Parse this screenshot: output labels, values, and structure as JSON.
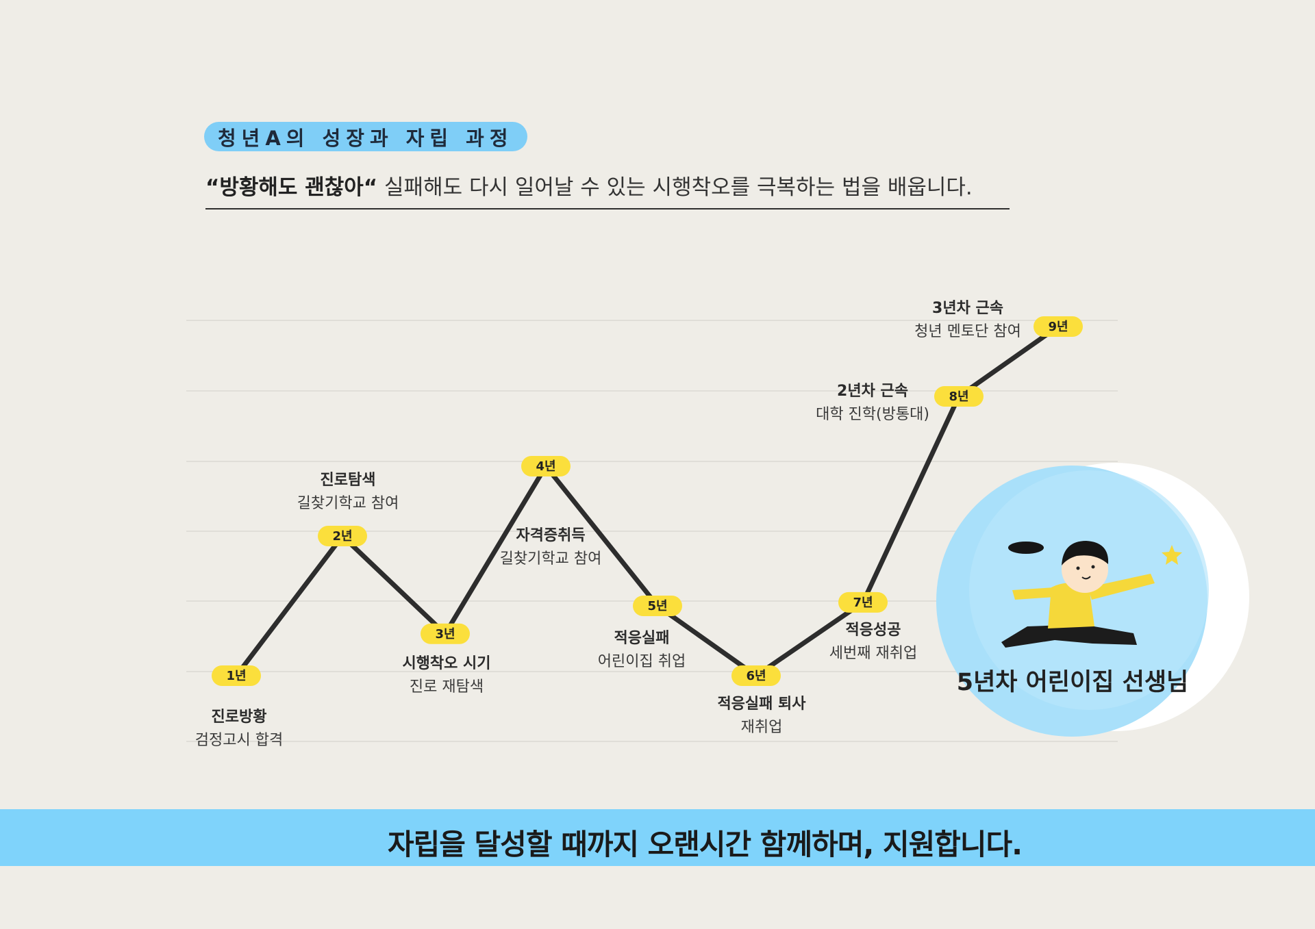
{
  "header": {
    "title": "청년A의 성장과 자립 과정",
    "subtitle_quote": "“방황해도 괜찮아“",
    "subtitle_text": " 실패해도 다시 일어날 수 있는 시행착오를 극복하는 법을 배웁니다."
  },
  "timeline": [
    {
      "badge": "1년",
      "title": "진로방황",
      "desc": "검정고시 합격",
      "level": 1.0
    },
    {
      "badge": "2년",
      "title": "진로탐색",
      "desc": "길찾기학교 참여",
      "level": 3.0
    },
    {
      "badge": "3년",
      "title": "시행착오 시기",
      "desc": "진로 재탐색",
      "level": 1.6
    },
    {
      "badge": "4년",
      "title": "자격증취득",
      "desc": "길찾기학교 참여",
      "level": 4.0
    },
    {
      "badge": "5년",
      "title": "적응실패",
      "desc": "어린이집 취업",
      "level": 2.0
    },
    {
      "badge": "6년",
      "title": "적응실패 퇴사",
      "desc": "재취업",
      "level": 1.0
    },
    {
      "badge": "7년",
      "title": "적응성공",
      "desc": "세번째 재취업",
      "level": 2.05
    },
    {
      "badge": "8년",
      "title": "2년차 근속",
      "desc": "대학 진학(방통대)",
      "level": 5.0
    },
    {
      "badge": "9년",
      "title": "3년차 근속",
      "desc": "청년 멘토단 참여",
      "level": 6.0
    }
  ],
  "illustration": {
    "caption": "5년차 어린이집 선생님"
  },
  "colors": {
    "background": "#efede7",
    "accent_blue": "#7fcef7",
    "badge_yellow": "#fbdf3c",
    "line": "#2d2d2d",
    "circle_blue": "#a9e0fa"
  },
  "footer": {
    "banner_text": "자립을 달성할 때까지 오랜시간 함께하며, 지원합니다."
  }
}
